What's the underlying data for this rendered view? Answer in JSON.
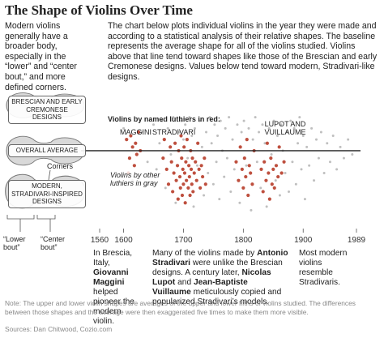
{
  "header": {
    "title": "The Shape of Violins Over Time",
    "intro": "Modern violins generally have a broader body, especially in the “lower” and “center bout,” and more defined corners.",
    "description": "The chart below plots individual violins in the year they were made and according to a statistical analysis of their relative shapes. The baseline represents the average shape for all of the violins studied. Violins above that line tend toward shapes like those of the Brescian and early Cremonese designs. Values below tend toward modern, Stradivari-like designs."
  },
  "shapes": {
    "upper": "BRESCIAN AND EARLY CREMONESE DESIGNS",
    "average": "OVERALL AVERAGE",
    "lower": "MODERN, STRADIVARI-INSPIRED DESIGNS",
    "corners": "Corners",
    "lower_bout": "“Lower bout”",
    "center_bout": "“Center bout”"
  },
  "chart_data": {
    "type": "scatter",
    "legend_title": "Violins by named luthiers in red:",
    "labels": {
      "maggini": "MAGGINI",
      "stradivari": "STRADIVARI",
      "lupot": "LUPOT AND VUILLAUME",
      "gray": "Violins by other luthiers in gray"
    },
    "xlim": [
      1560,
      1989
    ],
    "xticks": [
      1560,
      1600,
      1700,
      1800,
      1900,
      1989
    ],
    "ylim": [
      -1.7,
      1
    ],
    "baseline": 0,
    "series": [
      {
        "color": "#8a8a8a",
        "x": [
          1600,
          1615,
          1630,
          1640,
          1650,
          1655,
          1660,
          1664,
          1670,
          1674,
          1679,
          1683,
          1687,
          1693,
          1697,
          1700,
          1703,
          1707,
          1710,
          1714,
          1717,
          1719,
          1723,
          1727,
          1731,
          1734,
          1738,
          1741,
          1744,
          1747,
          1750,
          1752,
          1755,
          1757,
          1760,
          1762,
          1765,
          1768,
          1770,
          1773,
          1776,
          1779,
          1782,
          1785,
          1790,
          1794,
          1797,
          1801,
          1805,
          1809,
          1813,
          1816,
          1820,
          1823,
          1826,
          1829,
          1832,
          1836,
          1839,
          1843,
          1847,
          1851,
          1854,
          1857,
          1861,
          1863,
          1866,
          1870,
          1873,
          1876,
          1879,
          1882,
          1885,
          1888,
          1891,
          1894,
          1897,
          1900,
          1903,
          1906,
          1910,
          1914,
          1918,
          1922,
          1926,
          1930,
          1935,
          1940,
          1945,
          1950,
          1956,
          1962,
          1968,
          1975,
          1982
        ],
        "values": [
          0.6,
          -0.8,
          0.5,
          -0.3,
          0.7,
          -0.5,
          0.2,
          0.8,
          -1.0,
          0.6,
          -0.1,
          0.9,
          -1.4,
          0.5,
          0.8,
          0.3,
          0.7,
          -0.2,
          0.9,
          0.4,
          -1.5,
          0.6,
          -0.4,
          0.8,
          0.1,
          -1.2,
          0.5,
          -0.6,
          0.9,
          0.2,
          -0.9,
          0.7,
          -0.3,
          0.4,
          -1.3,
          0.8,
          0.0,
          -0.7,
          0.6,
          -0.2,
          0.9,
          -1.1,
          0.3,
          -0.5,
          0.7,
          -1.4,
          0.5,
          0.8,
          -0.4,
          0.6,
          -1.6,
          0.3,
          0.9,
          -0.3,
          0.5,
          -1.0,
          0.7,
          0.2,
          -1.5,
          0.6,
          -0.1,
          0.8,
          -0.8,
          0.4,
          -1.2,
          0.7,
          0.0,
          -0.6,
          0.5,
          -1.1,
          0.8,
          -0.3,
          0.6,
          -0.9,
          0.2,
          0.9,
          -0.5,
          0.4,
          -1.3,
          0.1,
          -0.4,
          0.6,
          -0.8,
          0.3,
          -0.2,
          0.5,
          -0.6,
          0.2,
          -0.3,
          0.4,
          -0.5,
          0.1,
          -0.2,
          0.3,
          -0.1
        ]
      },
      {
        "color": "#b3301c",
        "x": [
          1605,
          1610,
          1612,
          1615,
          1618,
          1620,
          1622,
          1625,
          1628,
          1608,
          1666,
          1668,
          1672,
          1675,
          1678,
          1680,
          1682,
          1684,
          1686,
          1688,
          1690,
          1691,
          1692,
          1694,
          1695,
          1696,
          1697,
          1698,
          1699,
          1700,
          1701,
          1702,
          1703,
          1704,
          1705,
          1706,
          1708,
          1709,
          1710,
          1711,
          1712,
          1713,
          1714,
          1715,
          1716,
          1718,
          1720,
          1722,
          1724,
          1726,
          1728,
          1730,
          1732,
          1735,
          1737,
          1788,
          1792,
          1795,
          1798,
          1800,
          1802,
          1804,
          1806,
          1808,
          1810,
          1812,
          1815,
          1818,
          1830,
          1833,
          1835,
          1838,
          1840,
          1842,
          1844,
          1846,
          1848,
          1850,
          1852,
          1855,
          1858,
          1860,
          1864,
          1868
        ],
        "values": [
          0.3,
          -0.2,
          0.4,
          0.1,
          -0.4,
          0.2,
          -0.1,
          0.5,
          0.0,
          -0.6,
          -0.2,
          0.3,
          -0.5,
          -0.9,
          0.1,
          -0.3,
          -1.1,
          -0.6,
          0.2,
          -0.8,
          -0.4,
          -1.3,
          0.0,
          -0.7,
          -1.0,
          0.4,
          -0.2,
          -1.2,
          -0.5,
          -0.9,
          0.1,
          -0.6,
          -1.4,
          -0.3,
          -0.8,
          0.3,
          -1.0,
          -0.4,
          -0.7,
          -1.2,
          0.0,
          -0.5,
          -0.9,
          -0.2,
          -1.1,
          -0.6,
          -0.3,
          -0.8,
          0.2,
          -0.5,
          -1.0,
          -0.4,
          -0.7,
          -0.2,
          -0.9,
          -0.3,
          -0.8,
          0.1,
          -0.5,
          -1.0,
          -0.2,
          -0.7,
          0.3,
          -1.2,
          -0.4,
          -0.6,
          -0.9,
          0.0,
          -0.5,
          -1.1,
          -0.3,
          -0.8,
          0.2,
          -0.6,
          -1.3,
          -0.2,
          -0.9,
          -0.5,
          -1.0,
          -0.4,
          -0.7,
          0.1,
          -0.6,
          -0.3
        ]
      }
    ]
  },
  "annotations": [
    [
      {
        "text": "In Brescia, Italy, ",
        "bold": false
      },
      {
        "text": "Giovanni Maggini",
        "bold": true
      },
      {
        "text": " helped pioneer the modern violin.",
        "bold": false
      }
    ],
    [
      {
        "text": "Many of the violins made by ",
        "bold": false
      },
      {
        "text": "Antonio Stradivari",
        "bold": true
      },
      {
        "text": " were unlike the Brescian designs. A century later, ",
        "bold": false
      },
      {
        "text": "Nicolas Lupot",
        "bold": true
      },
      {
        "text": " and ",
        "bold": false
      },
      {
        "text": "Jean-Baptiste Vuillaume",
        "bold": true
      },
      {
        "text": " meticulously copied and popularized Stradivari’s models.",
        "bold": false
      }
    ],
    [
      {
        "text": "Most modern violins resemble Stradivaris.",
        "bold": false
      }
    ]
  ],
  "footer": {
    "note": "Note: The upper and lower violin shapes are averages of the upper and lower fifths of violins studied. The differences between those shapes and the average were then exaggerated five times to make them more visible.",
    "source": "Sources: Dan Chitwood, Cozio.com"
  }
}
